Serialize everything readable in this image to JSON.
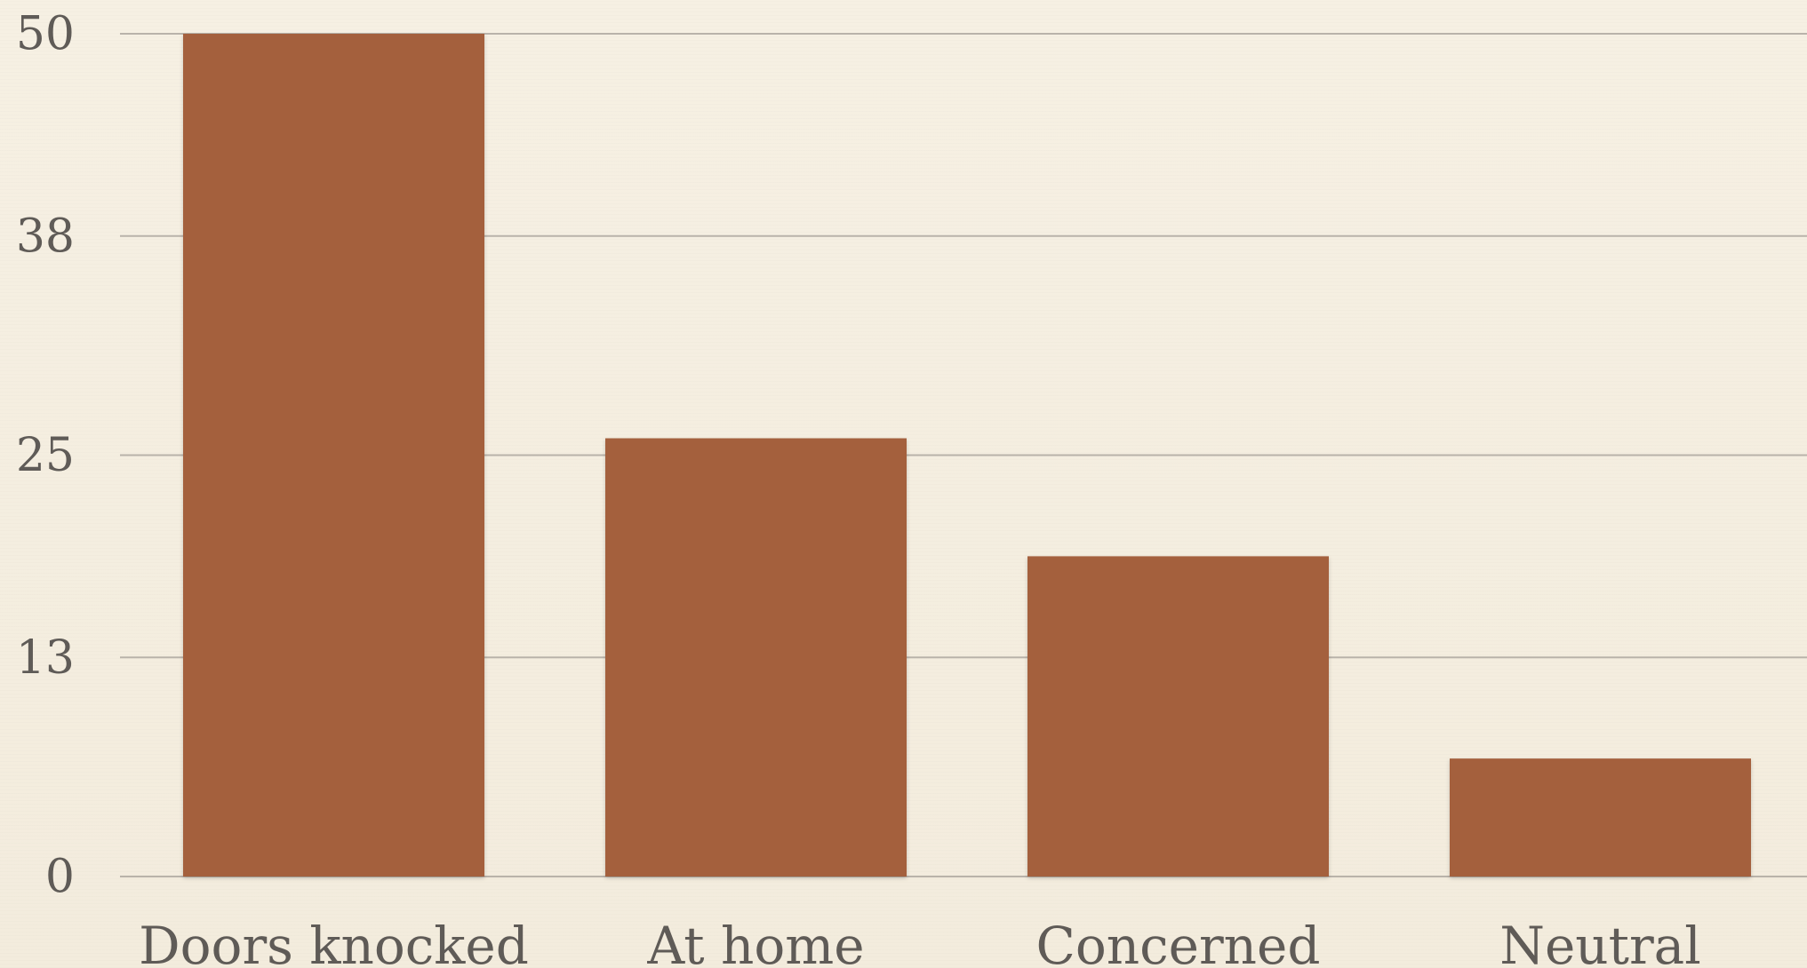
{
  "chart_data": {
    "type": "bar",
    "categories": [
      "Doors knocked",
      "At home",
      "Concerned",
      "Neutral"
    ],
    "values": [
      50,
      26,
      19,
      7
    ],
    "yticks": [
      0,
      13,
      25,
      38,
      50
    ],
    "ylim": [
      0,
      50
    ],
    "grid": true,
    "bar_color": "#a4603c",
    "grid_color": "#b9b3aa",
    "text_color": "#5f5b57"
  }
}
